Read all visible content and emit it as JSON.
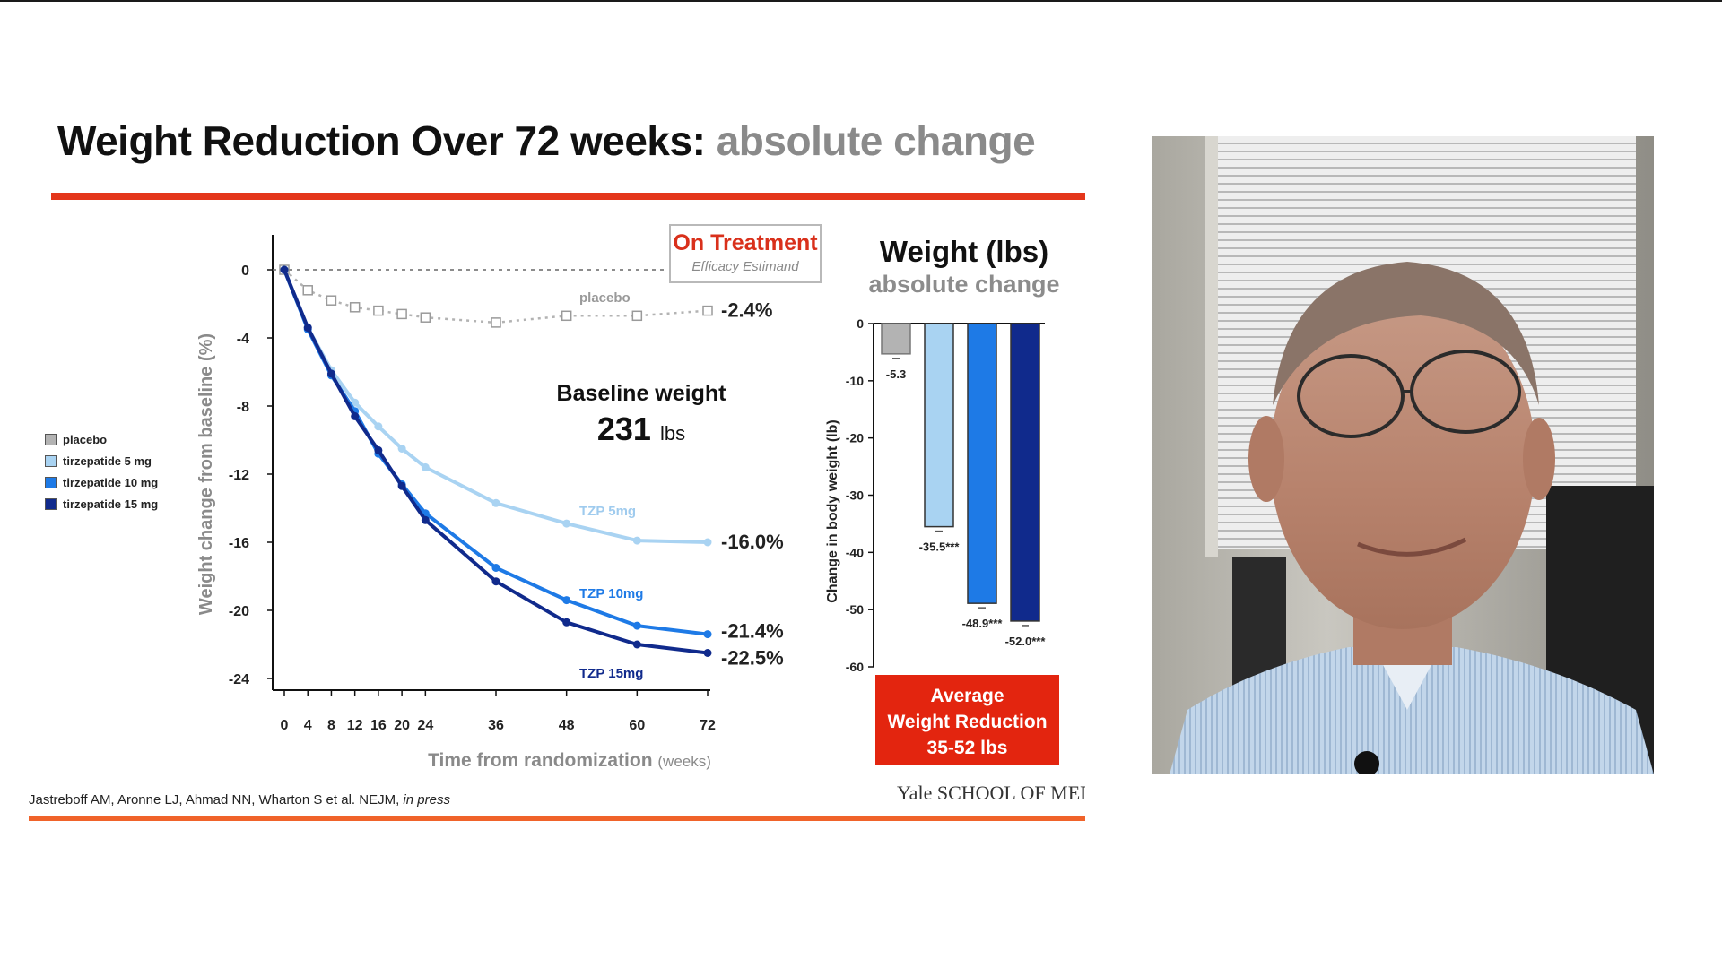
{
  "slide": {
    "title_main": "Weight Reduction Over 72 weeks:",
    "title_sub": "absolute change",
    "citation_text": "Jastreboff AM, Aronne LJ, Ahmad NN, Wharton S et al. NEJM,",
    "citation_em": "in press",
    "institution": "Yale SCHOOL OF MEDIC",
    "on_treatment": {
      "title": "On Treatment",
      "subtitle": "Efficacy Estimand"
    },
    "baseline": {
      "label": "Baseline weight",
      "value": "231",
      "unit": "lbs"
    },
    "bar_panel": {
      "title": "Weight (lbs)",
      "subtitle": "absolute change"
    },
    "average_box": [
      "Average",
      "Weight Reduction",
      "35-52 lbs"
    ]
  },
  "legend": [
    {
      "label": "placebo",
      "color": "#b3b3b3"
    },
    {
      "label": "tirzepatide 5 mg",
      "color": "#a9d3f2"
    },
    {
      "label": "tirzepatide 10 mg",
      "color": "#1e7ae6"
    },
    {
      "label": "tirzepatide 15 mg",
      "color": "#102a8c"
    }
  ],
  "colors": {
    "placebo": "#b3b3b3",
    "tzp5": "#a9d3f2",
    "tzp10": "#1e7ae6",
    "tzp15": "#102a8c",
    "accent": "#e4361b"
  },
  "chart_data": [
    {
      "type": "line",
      "xlabel": "Time from randomization",
      "xlabel_unit": "(weeks)",
      "ylabel": "Weight change from baseline (%)",
      "xlim": [
        0,
        72
      ],
      "ylim": [
        -24,
        0
      ],
      "x_ticks": [
        0,
        4,
        8,
        12,
        16,
        20,
        24,
        36,
        48,
        60,
        72
      ],
      "y_ticks": [
        0,
        -4,
        -8,
        -12,
        -16,
        -20,
        -24
      ],
      "series": [
        {
          "key": "placebo",
          "inline_label": "placebo",
          "end_label": "-2.4%",
          "x": [
            0,
            4,
            8,
            12,
            16,
            20,
            24,
            36,
            48,
            60,
            72
          ],
          "y": [
            0,
            -1.2,
            -1.8,
            -2.2,
            -2.4,
            -2.6,
            -2.8,
            -3.1,
            -2.7,
            -2.7,
            -2.4
          ]
        },
        {
          "key": "tzp5",
          "inline_label": "TZP 5mg",
          "end_label": "-16.0%",
          "x": [
            0,
            4,
            8,
            12,
            16,
            20,
            24,
            36,
            48,
            60,
            72
          ],
          "y": [
            0,
            -3.4,
            -5.9,
            -7.8,
            -9.2,
            -10.5,
            -11.6,
            -13.7,
            -14.9,
            -15.9,
            -16.0
          ]
        },
        {
          "key": "tzp10",
          "inline_label": "TZP 10mg",
          "end_label": "-21.4%",
          "x": [
            0,
            4,
            8,
            12,
            16,
            20,
            24,
            36,
            48,
            60,
            72
          ],
          "y": [
            0,
            -3.5,
            -6.2,
            -8.3,
            -10.8,
            -12.6,
            -14.3,
            -17.5,
            -19.4,
            -20.9,
            -21.4
          ]
        },
        {
          "key": "tzp15",
          "inline_label": "TZP 15mg",
          "end_label": "-22.5%",
          "x": [
            0,
            4,
            8,
            12,
            16,
            20,
            24,
            36,
            48,
            60,
            72
          ],
          "y": [
            0,
            -3.4,
            -6.1,
            -8.6,
            -10.6,
            -12.7,
            -14.7,
            -18.3,
            -20.7,
            -22.0,
            -22.5
          ]
        }
      ]
    },
    {
      "type": "bar",
      "ylabel": "Change in body weight (lb)",
      "ylim": [
        -60,
        0
      ],
      "y_ticks": [
        0,
        -10,
        -20,
        -30,
        -40,
        -50,
        -60
      ],
      "categories": [
        "placebo",
        "tirzepatide 5 mg",
        "tirzepatide 10 mg",
        "tirzepatide 15 mg"
      ],
      "values": [
        -5.3,
        -35.5,
        -48.9,
        -52.0
      ],
      "value_labels": [
        "-5.3",
        "-35.5***",
        "-48.9***",
        "-52.0***"
      ]
    }
  ]
}
